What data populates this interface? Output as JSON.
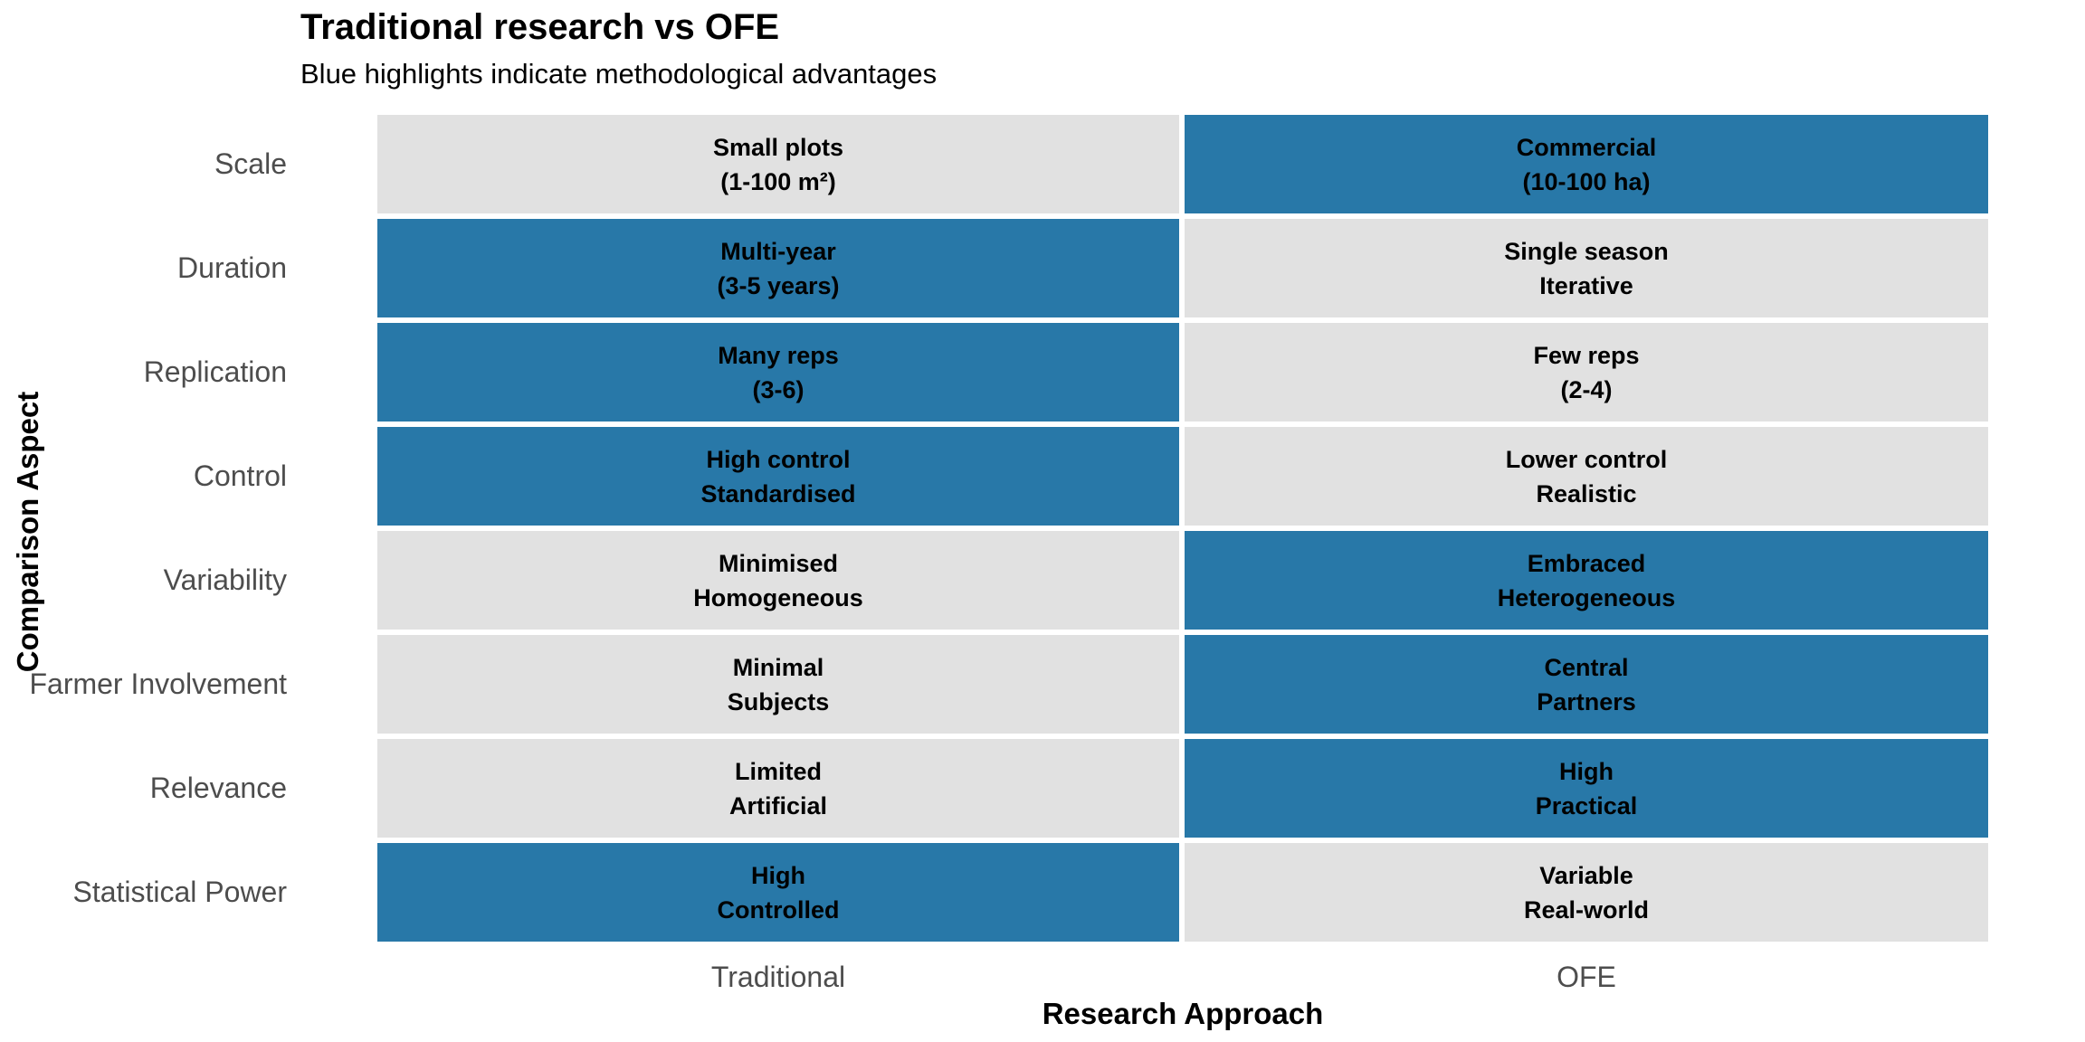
{
  "colors": {
    "highlight": "#2878A8",
    "muted": "#E1E1E1",
    "axis_text": "#4D4D4D",
    "text": "#000000"
  },
  "header": {
    "title": "Traditional research vs OFE",
    "subtitle": "Blue highlights indicate methodological advantages"
  },
  "chart_data": {
    "type": "heatmap",
    "title": "Traditional research vs OFE",
    "subtitle": "Blue highlights indicate methodological advantages",
    "xlabel": "Research Approach",
    "ylabel": "Comparison Aspect",
    "columns": [
      "Traditional",
      "OFE"
    ],
    "highlight_meaning": "Blue cell = methodological advantage",
    "rows": [
      {
        "aspect": "Scale",
        "traditional": {
          "line1": "Small plots",
          "line2": "(1-100 m²)",
          "highlighted": false
        },
        "ofe": {
          "line1": "Commercial",
          "line2": "(10-100 ha)",
          "highlighted": true
        }
      },
      {
        "aspect": "Duration",
        "traditional": {
          "line1": "Multi-year",
          "line2": "(3-5 years)",
          "highlighted": true
        },
        "ofe": {
          "line1": "Single season",
          "line2": "Iterative",
          "highlighted": false
        }
      },
      {
        "aspect": "Replication",
        "traditional": {
          "line1": "Many reps",
          "line2": "(3-6)",
          "highlighted": true
        },
        "ofe": {
          "line1": "Few reps",
          "line2": "(2-4)",
          "highlighted": false
        }
      },
      {
        "aspect": "Control",
        "traditional": {
          "line1": "High control",
          "line2": "Standardised",
          "highlighted": true
        },
        "ofe": {
          "line1": "Lower control",
          "line2": "Realistic",
          "highlighted": false
        }
      },
      {
        "aspect": "Variability",
        "traditional": {
          "line1": "Minimised",
          "line2": "Homogeneous",
          "highlighted": false
        },
        "ofe": {
          "line1": "Embraced",
          "line2": "Heterogeneous",
          "highlighted": true
        }
      },
      {
        "aspect": "Farmer Involvement",
        "traditional": {
          "line1": "Minimal",
          "line2": "Subjects",
          "highlighted": false
        },
        "ofe": {
          "line1": "Central",
          "line2": "Partners",
          "highlighted": true
        }
      },
      {
        "aspect": "Relevance",
        "traditional": {
          "line1": "Limited",
          "line2": "Artificial",
          "highlighted": false
        },
        "ofe": {
          "line1": "High",
          "line2": "Practical",
          "highlighted": true
        }
      },
      {
        "aspect": "Statistical Power",
        "traditional": {
          "line1": "High",
          "line2": "Controlled",
          "highlighted": true
        },
        "ofe": {
          "line1": "Variable",
          "line2": "Real-world",
          "highlighted": false
        }
      }
    ]
  }
}
